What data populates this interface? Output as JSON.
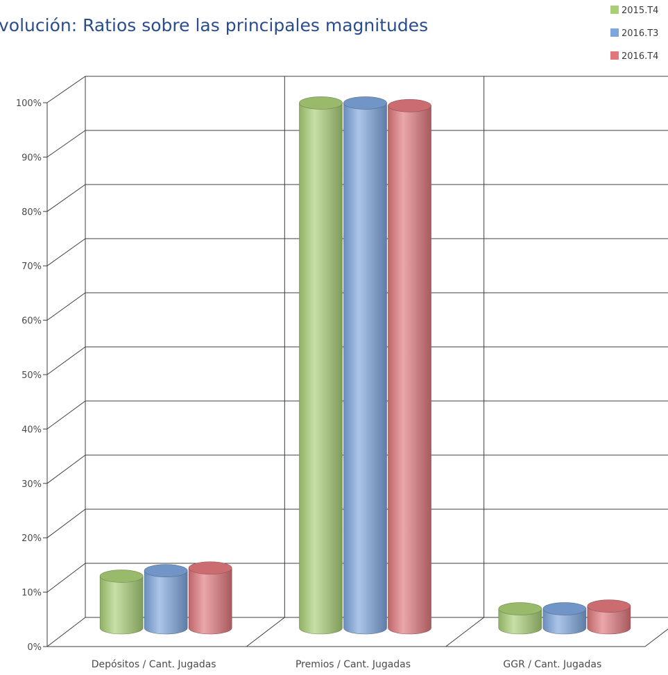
{
  "chart_data": {
    "type": "bar",
    "title": "volución: Ratios sobre las principales magnitudes",
    "categories": [
      "Depósitos / Cant. Jugadas",
      "Premios / Cant. Jugadas",
      "GGR / Cant. Jugadas"
    ],
    "series": [
      {
        "name": "2015.T4",
        "values": [
          9.5,
          96.5,
          3.5
        ],
        "color": "#a9cf76"
      },
      {
        "name": "2016.T3",
        "values": [
          10.5,
          96.5,
          3.5
        ],
        "color": "#7da6dd"
      },
      {
        "name": "2016.T4",
        "values": [
          11.0,
          96.0,
          4.0
        ],
        "color": "#e0787c"
      }
    ],
    "y_ticks": [
      "0%",
      "10%",
      "20%",
      "30%",
      "40%",
      "50%",
      "60%",
      "70%",
      "80%",
      "90%",
      "100%"
    ],
    "ylim": [
      0,
      100
    ],
    "grid": true,
    "legend": "top-right"
  }
}
